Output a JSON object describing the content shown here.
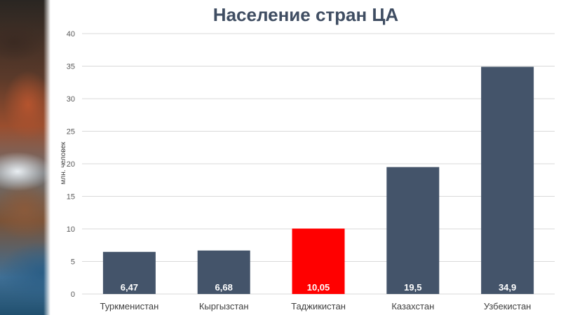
{
  "chart_data": {
    "type": "bar",
    "title": "Население стран ЦА",
    "xlabel": "",
    "ylabel": "млн. человек",
    "ylim": [
      0,
      40
    ],
    "yticks": [
      0,
      5,
      10,
      15,
      20,
      25,
      30,
      35,
      40
    ],
    "grid": true,
    "categories": [
      "Туркменистан",
      "Кыргызстан",
      "Таджикистан",
      "Казахстан",
      "Узбекистан"
    ],
    "values": [
      6.47,
      6.68,
      10.05,
      19.5,
      34.9
    ],
    "data_labels": [
      "6,47",
      "6,68",
      "10,05",
      "19,5",
      "34,9"
    ],
    "colors": [
      "#44546a",
      "#44546a",
      "#ff0000",
      "#44546a",
      "#44546a"
    ]
  }
}
